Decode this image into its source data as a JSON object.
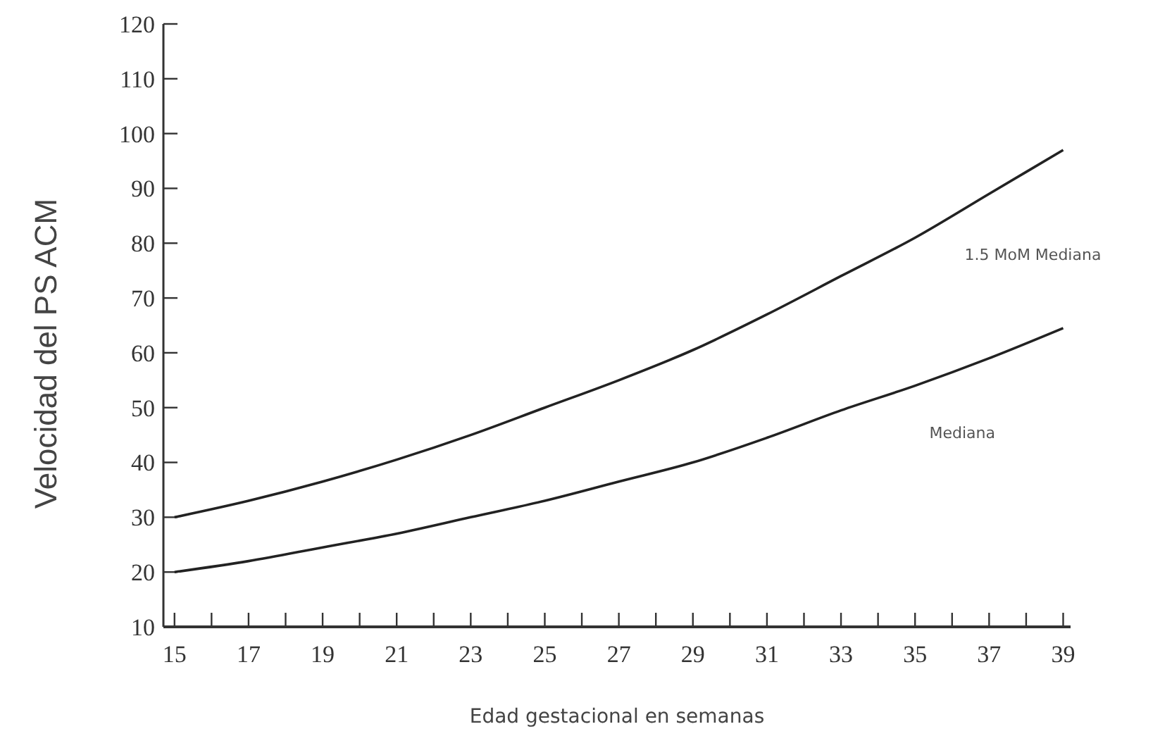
{
  "chart_data": {
    "type": "line",
    "xlabel": "Edad gestacional en semanas",
    "ylabel": "Velocidad del PS ACM",
    "x": [
      15,
      17,
      19,
      21,
      23,
      25,
      27,
      29,
      31,
      33,
      35,
      37,
      39
    ],
    "series": [
      {
        "name": "1.5 MoM Mediana",
        "color": "#222222",
        "values": [
          30,
          33,
          36.5,
          40.5,
          45,
          50,
          55,
          60.5,
          67,
          74,
          81,
          89,
          97
        ]
      },
      {
        "name": "Mediana",
        "color": "#222222",
        "values": [
          20,
          22,
          24.5,
          27,
          30,
          33,
          36.5,
          40,
          44.5,
          49.5,
          54,
          59,
          64.5
        ]
      }
    ],
    "xlim": [
      14.7,
      39.2
    ],
    "xticks": [
      15,
      {
        "value": 16,
        "label": null
      },
      17,
      {
        "value": 18,
        "label": null
      },
      19,
      {
        "value": 20,
        "label": null
      },
      21,
      {
        "value": 22,
        "label": null
      },
      23,
      {
        "value": 24,
        "label": null
      },
      25,
      {
        "value": 26,
        "label": null
      },
      27,
      {
        "value": 28,
        "label": null
      },
      29,
      {
        "value": 30,
        "label": null
      },
      31,
      {
        "value": 32,
        "label": null
      },
      33,
      {
        "value": 34,
        "label": null
      },
      35,
      {
        "value": 36,
        "label": null
      },
      37,
      {
        "value": 38,
        "label": null
      },
      39
    ],
    "ylim": [
      10,
      120
    ],
    "yticks": [
      10,
      20,
      30,
      40,
      50,
      60,
      70,
      80,
      90,
      100,
      110,
      120
    ],
    "grid": false,
    "legend": false,
    "marker": "none",
    "line_style": "solid"
  }
}
